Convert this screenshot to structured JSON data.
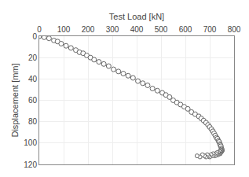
{
  "chart_data": {
    "type": "line",
    "xlabel": "Test Load [kN]",
    "ylabel": "Displacement [mm]",
    "xlim": [
      0,
      800
    ],
    "ylim": [
      120,
      0
    ],
    "xticks": [
      0,
      100,
      200,
      300,
      400,
      500,
      600,
      700,
      800
    ],
    "yticks": [
      0,
      20,
      40,
      60,
      80,
      100,
      120
    ],
    "grid": true,
    "series": [
      {
        "color": "#666666",
        "marker": "circle",
        "line_style": "dashed",
        "x": [
          0,
          20,
          40,
          60,
          75,
          90,
          110,
          130,
          150,
          165,
          180,
          195,
          210,
          225,
          245,
          265,
          285,
          305,
          325,
          345,
          365,
          385,
          405,
          425,
          445,
          465,
          485,
          505,
          520,
          535,
          550,
          565,
          580,
          595,
          610,
          625,
          640,
          655,
          665,
          675,
          685,
          693,
          700,
          707,
          713,
          718,
          723,
          728,
          732,
          736,
          739,
          742,
          744,
          746,
          748,
          749,
          750
        ],
        "values": [
          0,
          1,
          2,
          4,
          5,
          7,
          9,
          11,
          13,
          15,
          16,
          18,
          20,
          22,
          24,
          26,
          28,
          31,
          33,
          35,
          37,
          39,
          42,
          44,
          46,
          49,
          51,
          53,
          55,
          57,
          60,
          62,
          64,
          66,
          68,
          71,
          73,
          75,
          77,
          79,
          81,
          83,
          85,
          87,
          89,
          91,
          93,
          95,
          96,
          98,
          99,
          101,
          102,
          103,
          105,
          106,
          107
        ]
      },
      {
        "color": "#666666",
        "marker": "circle",
        "line_style": "dashed",
        "x": [
          750,
          749,
          748,
          747,
          746,
          745,
          744,
          743,
          742,
          740,
          738,
          736,
          734,
          732,
          730,
          728,
          725,
          722,
          718,
          714,
          710,
          705,
          700,
          695,
          690,
          685,
          678,
          670,
          660,
          648
        ],
        "values": [
          107,
          108,
          107,
          108,
          107,
          109,
          108,
          110,
          109,
          108,
          110,
          109,
          111,
          110,
          109,
          111,
          110,
          112,
          111,
          110,
          112,
          111,
          113,
          112,
          111,
          113,
          112,
          111,
          113,
          112
        ]
      }
    ]
  }
}
